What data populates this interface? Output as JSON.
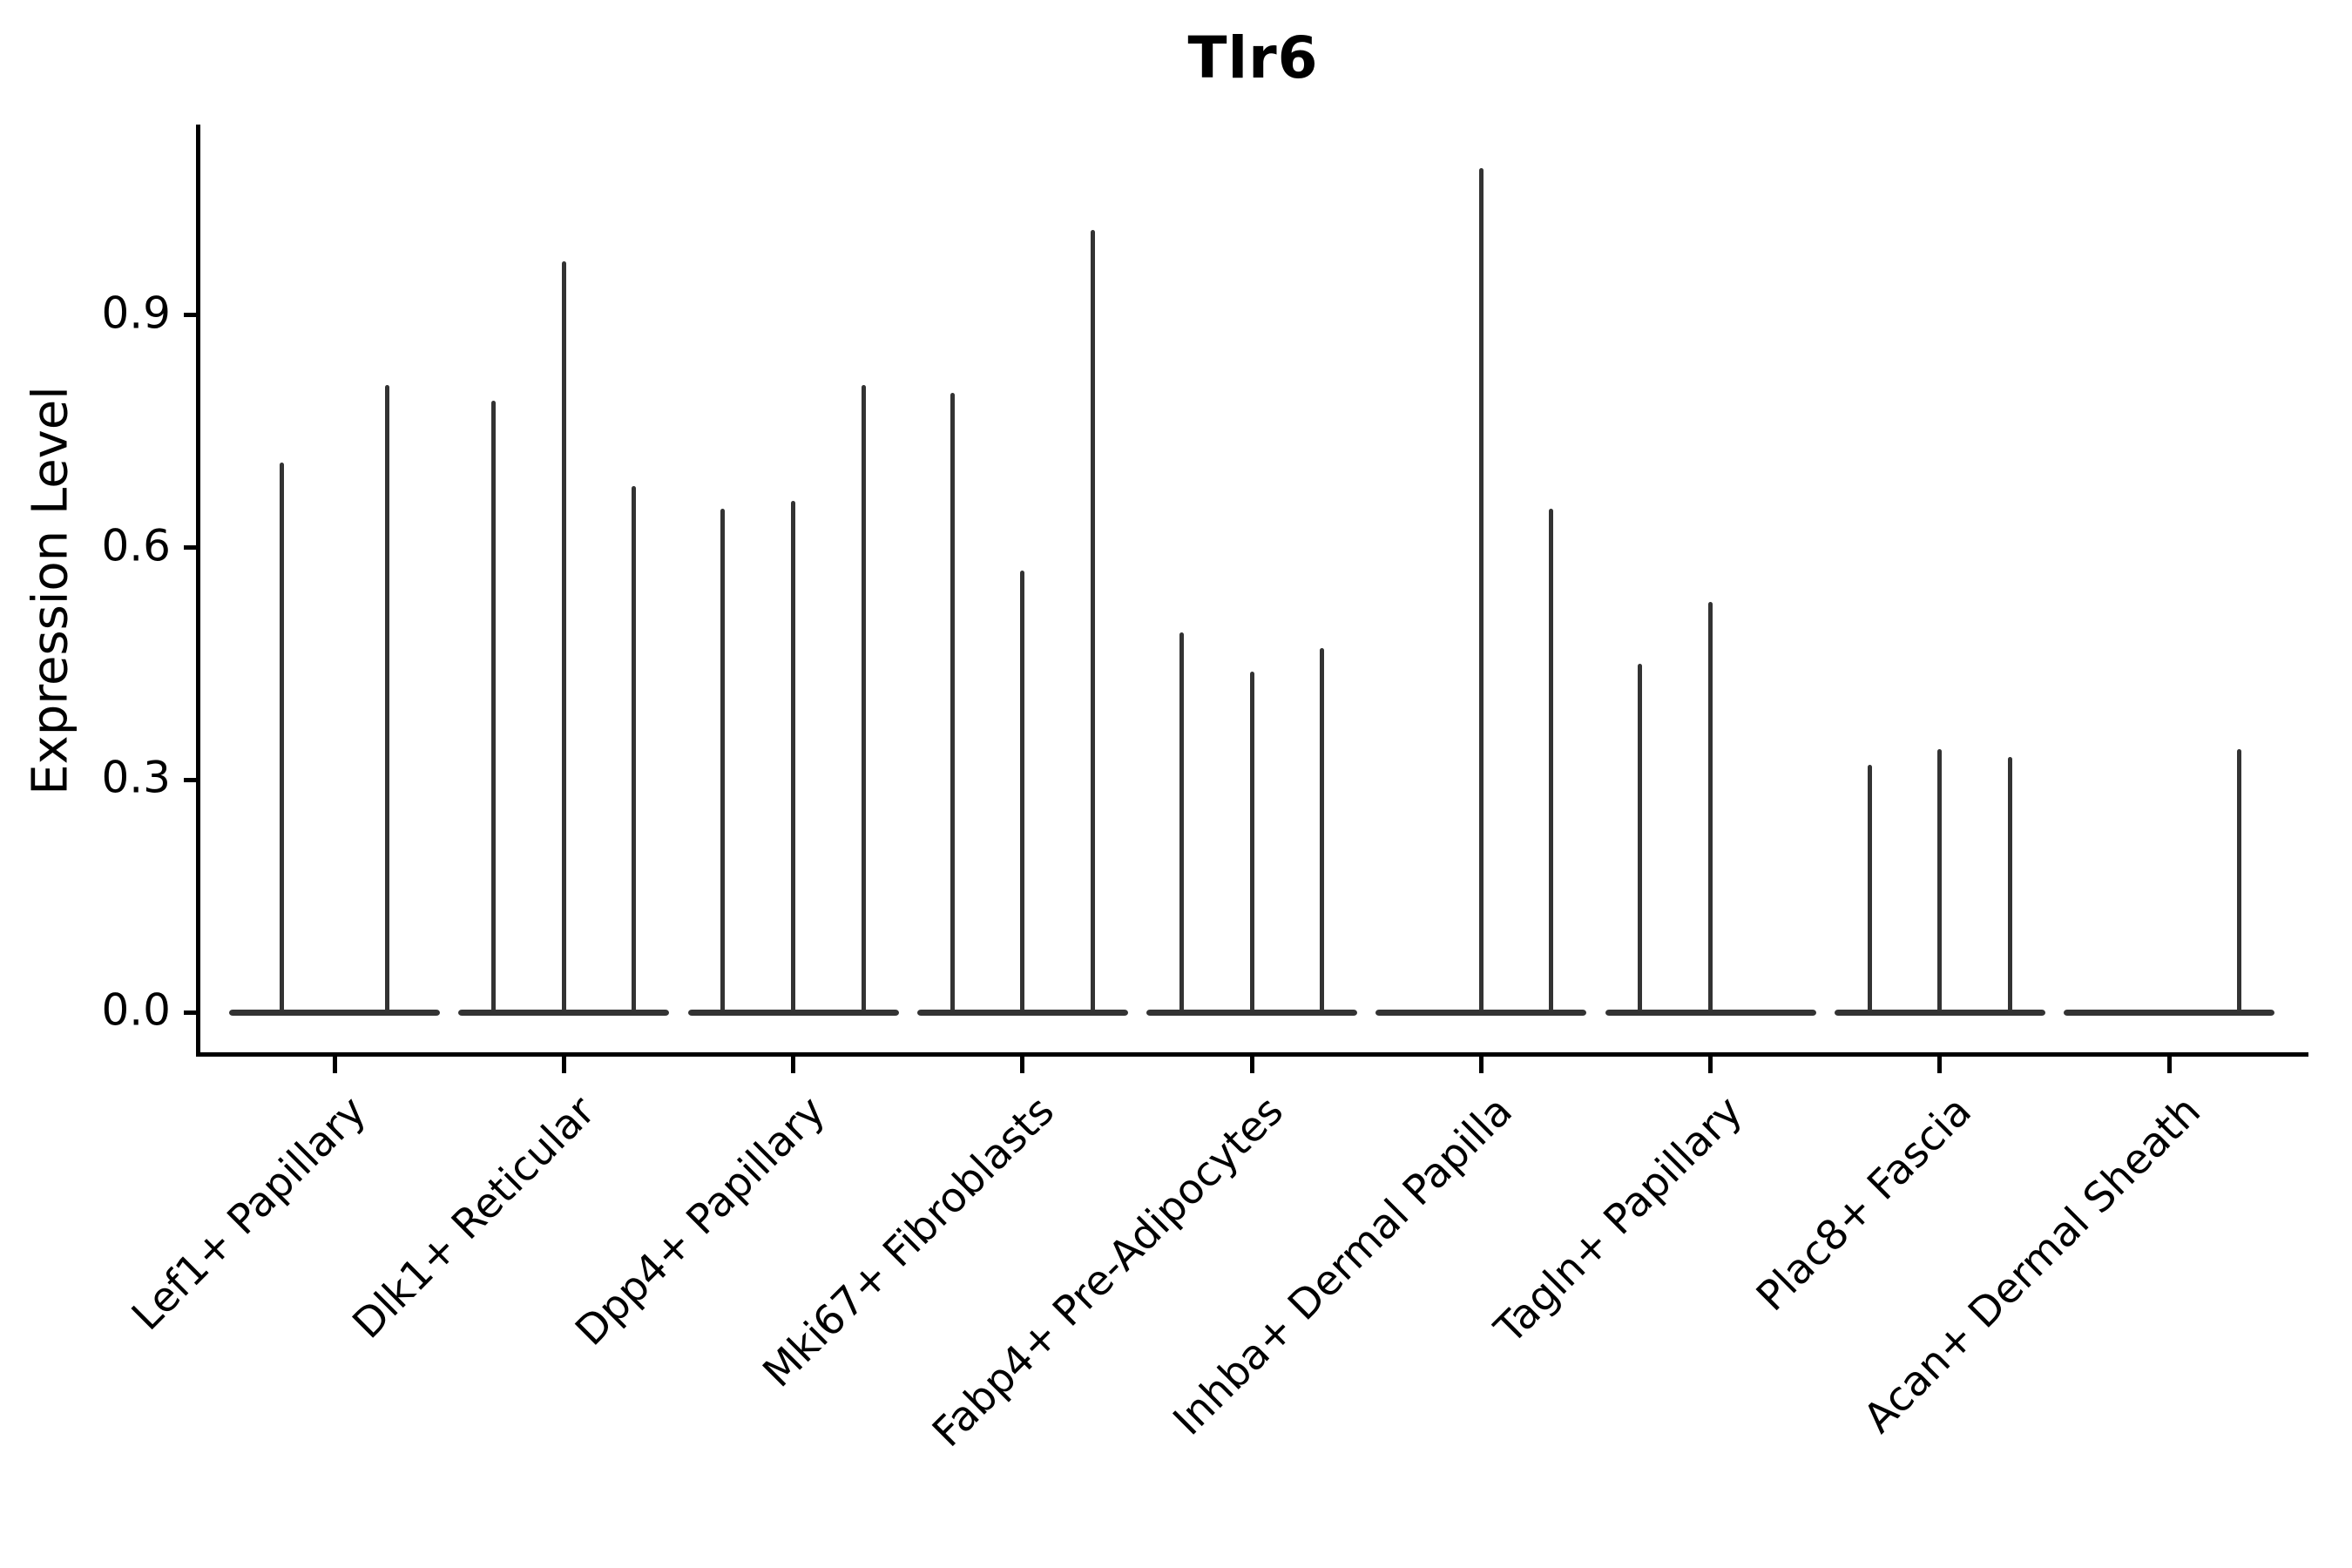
{
  "chart_data": {
    "type": "violin",
    "title": "Tlr6",
    "ylabel": "Expression Level",
    "xlabel": "",
    "ylim": [
      -0.05,
      1.15
    ],
    "grid": false,
    "legend": "none",
    "yticks": [
      {
        "value": 0.0,
        "label": "0.0"
      },
      {
        "value": 0.3,
        "label": "0.3"
      },
      {
        "value": 0.6,
        "label": "0.6"
      },
      {
        "value": 0.9,
        "label": "0.9"
      }
    ],
    "categories": [
      "Lef1+ Papillary",
      "Dlk1+ Reticular",
      "Dpp4+ Papillary",
      "Mki67+ Fibroblasts",
      "Fabp4+ Pre-Adipocytes",
      "Inhba+ Dermal Papilla",
      "Tagln+ Papillary",
      "Plac8+ Fascia",
      "Acan+ Dermal Sheath"
    ],
    "groups": [
      {
        "category": "Lef1+ Papillary",
        "violin_max_values": [
          0.71,
          0.81
        ]
      },
      {
        "category": "Dlk1+ Reticular",
        "violin_max_values": [
          0.79,
          0.97,
          0.68
        ]
      },
      {
        "category": "Dpp4+ Papillary",
        "violin_max_values": [
          0.65,
          0.66,
          0.81
        ]
      },
      {
        "category": "Mki67+ Fibroblasts",
        "violin_max_values": [
          0.8,
          0.57,
          1.01
        ]
      },
      {
        "category": "Fabp4+ Pre-Adipocytes",
        "violin_max_values": [
          0.49,
          0.44,
          0.47
        ]
      },
      {
        "category": "Inhba+ Dermal Papilla",
        "violin_max_values": [
          0.0,
          1.09,
          0.65
        ]
      },
      {
        "category": "Tagln+ Papillary",
        "violin_max_values": [
          0.45,
          0.53,
          0.0
        ]
      },
      {
        "category": "Plac8+ Fascia",
        "violin_max_values": [
          0.32,
          0.34,
          0.33
        ]
      },
      {
        "category": "Acan+ Dermal Sheath",
        "violin_max_values": [
          0.0,
          0.0,
          0.34
        ]
      }
    ],
    "violin_shape_note": "Each violin is collapsed flat at expression 0 with a single thin density spike rising to its max value; violins with max 0 are flat only.",
    "colors": {
      "violin": "#333333",
      "axis": "#000000",
      "text": "#000000",
      "background": "#ffffff"
    }
  }
}
